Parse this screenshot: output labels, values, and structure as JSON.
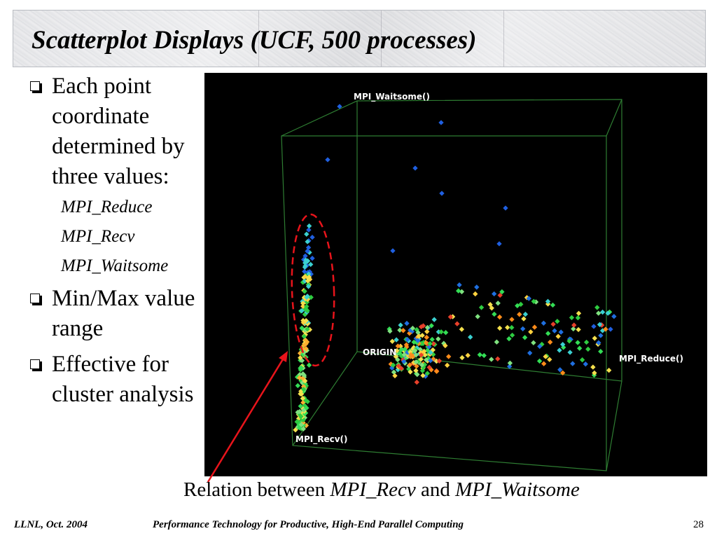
{
  "title": "Scatterplot Displays (UCF, 500 processes)",
  "bullets": [
    {
      "text": "Each point coordinate determined by three values:",
      "sub": [
        "MPI_Reduce",
        "MPI_Recv",
        "MPI_Waitsome"
      ]
    },
    {
      "text": "Min/Max value range"
    },
    {
      "text": "Effective for cluster analysis"
    }
  ],
  "plot": {
    "axis_labels": {
      "waitsome": "MPI_Waitsome()",
      "reduce": "MPI_Reduce()",
      "recv": "MPI_Recv()",
      "origin": "ORIGIN"
    }
  },
  "caption": {
    "prefix": "Relation between ",
    "term1": "MPI_Recv",
    "middle": " and ",
    "term2": "MPI_Waitsome"
  },
  "footer": {
    "left": "LLNL, Oct. 2004",
    "center": "Performance Technology for Productive, High-End Parallel Computing",
    "page": "28"
  },
  "colors": {
    "annotation": "#e8141b",
    "box_edges": "#2e7d32"
  }
}
